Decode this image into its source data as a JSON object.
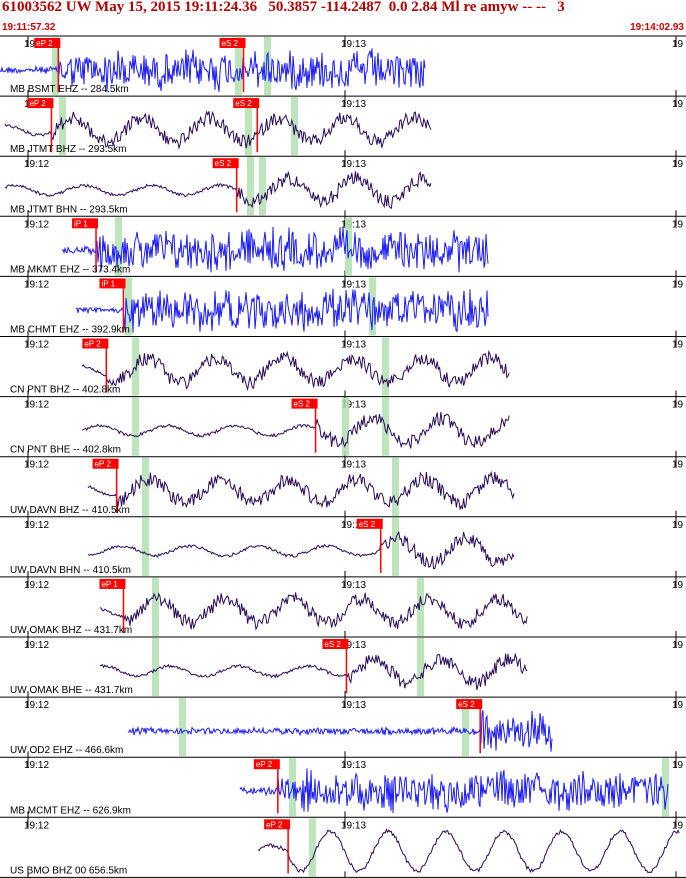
{
  "event": {
    "title": "61003562 UW May 15, 2015 19:11:24.36   50.3857 -114.2487  0.0 2.84 Ml re amyw -- --   3",
    "start_time": "19:11:57.32",
    "end_time": "19:14:02.93"
  },
  "time_ticks": [
    "19:12",
    "19:13",
    "19"
  ],
  "colors": {
    "ehz": "#1a1aff",
    "bh": "#2a0a5a",
    "pick": "#ff0000",
    "pick_text": "#ffffff",
    "window": "#b0e0b0",
    "frame": "#000000",
    "title": "#b00000",
    "time": "#d00000"
  },
  "traces": [
    {
      "label": "MB BSMT EHZ -- 284.5km",
      "color_key": "ehz",
      "picks": [
        {
          "text": "eP 2",
          "pos": 0.085
        },
        {
          "text": "eS 2",
          "pos": 0.355
        }
      ]
    },
    {
      "label": "MB JTMT BHZ -- 293.5km",
      "color_key": "bh",
      "picks": [
        {
          "text": "eP 2",
          "pos": 0.075
        },
        {
          "text": "eS 2",
          "pos": 0.375
        }
      ]
    },
    {
      "label": "MB JTMT BHN -- 293.5km",
      "color_key": "bh",
      "picks": [
        {
          "text": "eS 2",
          "pos": 0.345
        }
      ]
    },
    {
      "label": "MB MKMT EHZ -- 373.4km",
      "color_key": "ehz",
      "picks": [
        {
          "text": "iP 1",
          "pos": 0.14
        }
      ]
    },
    {
      "label": "MB CHMT EHZ -- 392.9km",
      "color_key": "ehz",
      "picks": [
        {
          "text": "iP 1",
          "pos": 0.18
        }
      ]
    },
    {
      "label": "CN PNT BHZ -- 402.8km",
      "color_key": "bh",
      "picks": [
        {
          "text": "eP 2",
          "pos": 0.155
        }
      ]
    },
    {
      "label": "CN PNT BHE -- 402.8km",
      "color_key": "bh",
      "picks": [
        {
          "text": "eS 2",
          "pos": 0.46
        }
      ]
    },
    {
      "label": "UW DAVN BHZ -- 410.5km",
      "color_key": "bh",
      "picks": [
        {
          "text": "eP 2",
          "pos": 0.17
        }
      ]
    },
    {
      "label": "UW DAVN BHN -- 410.5km",
      "color_key": "bh",
      "picks": [
        {
          "text": "eS 2",
          "pos": 0.555
        }
      ]
    },
    {
      "label": "UW OMAK BHZ -- 431.7km",
      "color_key": "bh",
      "picks": [
        {
          "text": "eP 1",
          "pos": 0.18
        }
      ]
    },
    {
      "label": "UW OMAK BHE -- 431.7km",
      "color_key": "bh",
      "picks": [
        {
          "text": "eS 2",
          "pos": 0.505
        }
      ]
    },
    {
      "label": "UW OD2 EHZ -- 466.6km",
      "color_key": "ehz",
      "picks": [
        {
          "text": "eS 2",
          "pos": 0.7
        }
      ]
    },
    {
      "label": "MB MCMT EHZ -- 626.9km",
      "color_key": "ehz",
      "picks": [
        {
          "text": "eP 2",
          "pos": 0.405
        }
      ]
    },
    {
      "label": "US BMO BHZ 00 656.5km",
      "color_key": "bh",
      "picks": [
        {
          "text": "eP 2",
          "pos": 0.42
        }
      ]
    }
  ]
}
